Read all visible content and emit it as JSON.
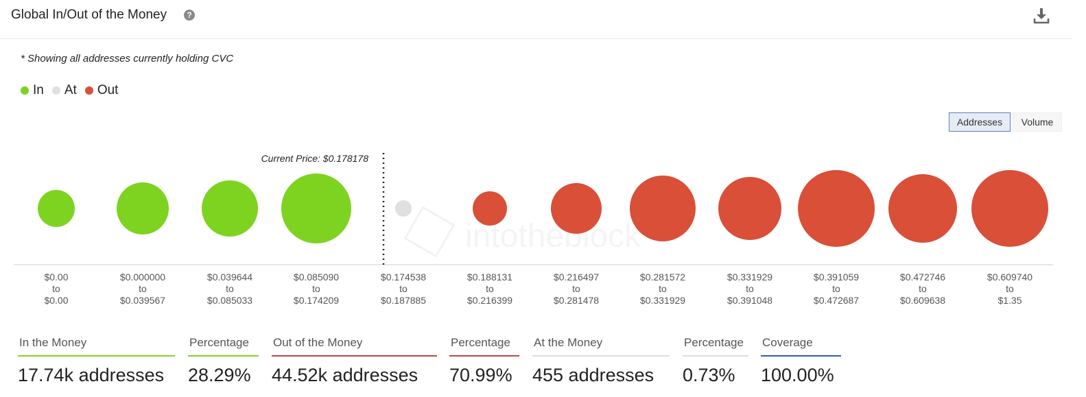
{
  "header": {
    "title": "Global In/Out of the Money",
    "help_icon": "question-circle-icon",
    "download_icon": "download-icon"
  },
  "note": "* Showing all addresses currently holding CVC",
  "legend": [
    {
      "label": "In",
      "color": "#7ed321"
    },
    {
      "label": "At",
      "color": "#e0e0e0"
    },
    {
      "label": "Out",
      "color": "#d94f38"
    }
  ],
  "toggle": {
    "addresses": "Addresses",
    "volume": "Volume"
  },
  "watermark": "intotheblock",
  "chart_data": {
    "type": "scatter",
    "annotation": "Current Price: $0.178178",
    "colors": {
      "in": "#7ed321",
      "at": "#e0e0e0",
      "out": "#d94f38"
    },
    "buckets": [
      {
        "range": [
          "$0.00",
          "to",
          "$0.00"
        ],
        "status": "in",
        "size": 27
      },
      {
        "range": [
          "$0.000000",
          "to",
          "$0.039567"
        ],
        "status": "in",
        "size": 38
      },
      {
        "range": [
          "$0.039644",
          "to",
          "$0.085033"
        ],
        "status": "in",
        "size": 41
      },
      {
        "range": [
          "$0.085090",
          "to",
          "$0.174209"
        ],
        "status": "in",
        "size": 51
      },
      {
        "range": [
          "$0.174538",
          "to",
          "$0.187885"
        ],
        "status": "at",
        "size": 12
      },
      {
        "range": [
          "$0.188131",
          "to",
          "$0.216399"
        ],
        "status": "out",
        "size": 25
      },
      {
        "range": [
          "$0.216497",
          "to",
          "$0.281478"
        ],
        "status": "out",
        "size": 37
      },
      {
        "range": [
          "$0.281572",
          "to",
          "$0.331929"
        ],
        "status": "out",
        "size": 48
      },
      {
        "range": [
          "$0.331929",
          "to",
          "$0.391048"
        ],
        "status": "out",
        "size": 46
      },
      {
        "range": [
          "$0.391059",
          "to",
          "$0.472687"
        ],
        "status": "out",
        "size": 56
      },
      {
        "range": [
          "$0.472746",
          "to",
          "$0.609638"
        ],
        "status": "out",
        "size": 50
      },
      {
        "range": [
          "$0.609740",
          "to",
          "$1.35"
        ],
        "status": "out",
        "size": 56
      }
    ]
  },
  "stats": [
    {
      "label": "In the Money",
      "value": "17.74k addresses",
      "color": "#7ed321"
    },
    {
      "label": "Percentage",
      "value": "28.29%",
      "color": "#7ed321"
    },
    {
      "label": "Out of the Money",
      "value": "44.52k addresses",
      "color": "#c0473a"
    },
    {
      "label": "Percentage",
      "value": "70.99%",
      "color": "#c0473a"
    },
    {
      "label": "At the Money",
      "value": "455 addresses",
      "color": "#dddddd"
    },
    {
      "label": "Percentage",
      "value": "0.73%",
      "color": "#dddddd"
    },
    {
      "label": "Coverage",
      "value": "100.00%",
      "color": "#2f5fb3"
    }
  ]
}
